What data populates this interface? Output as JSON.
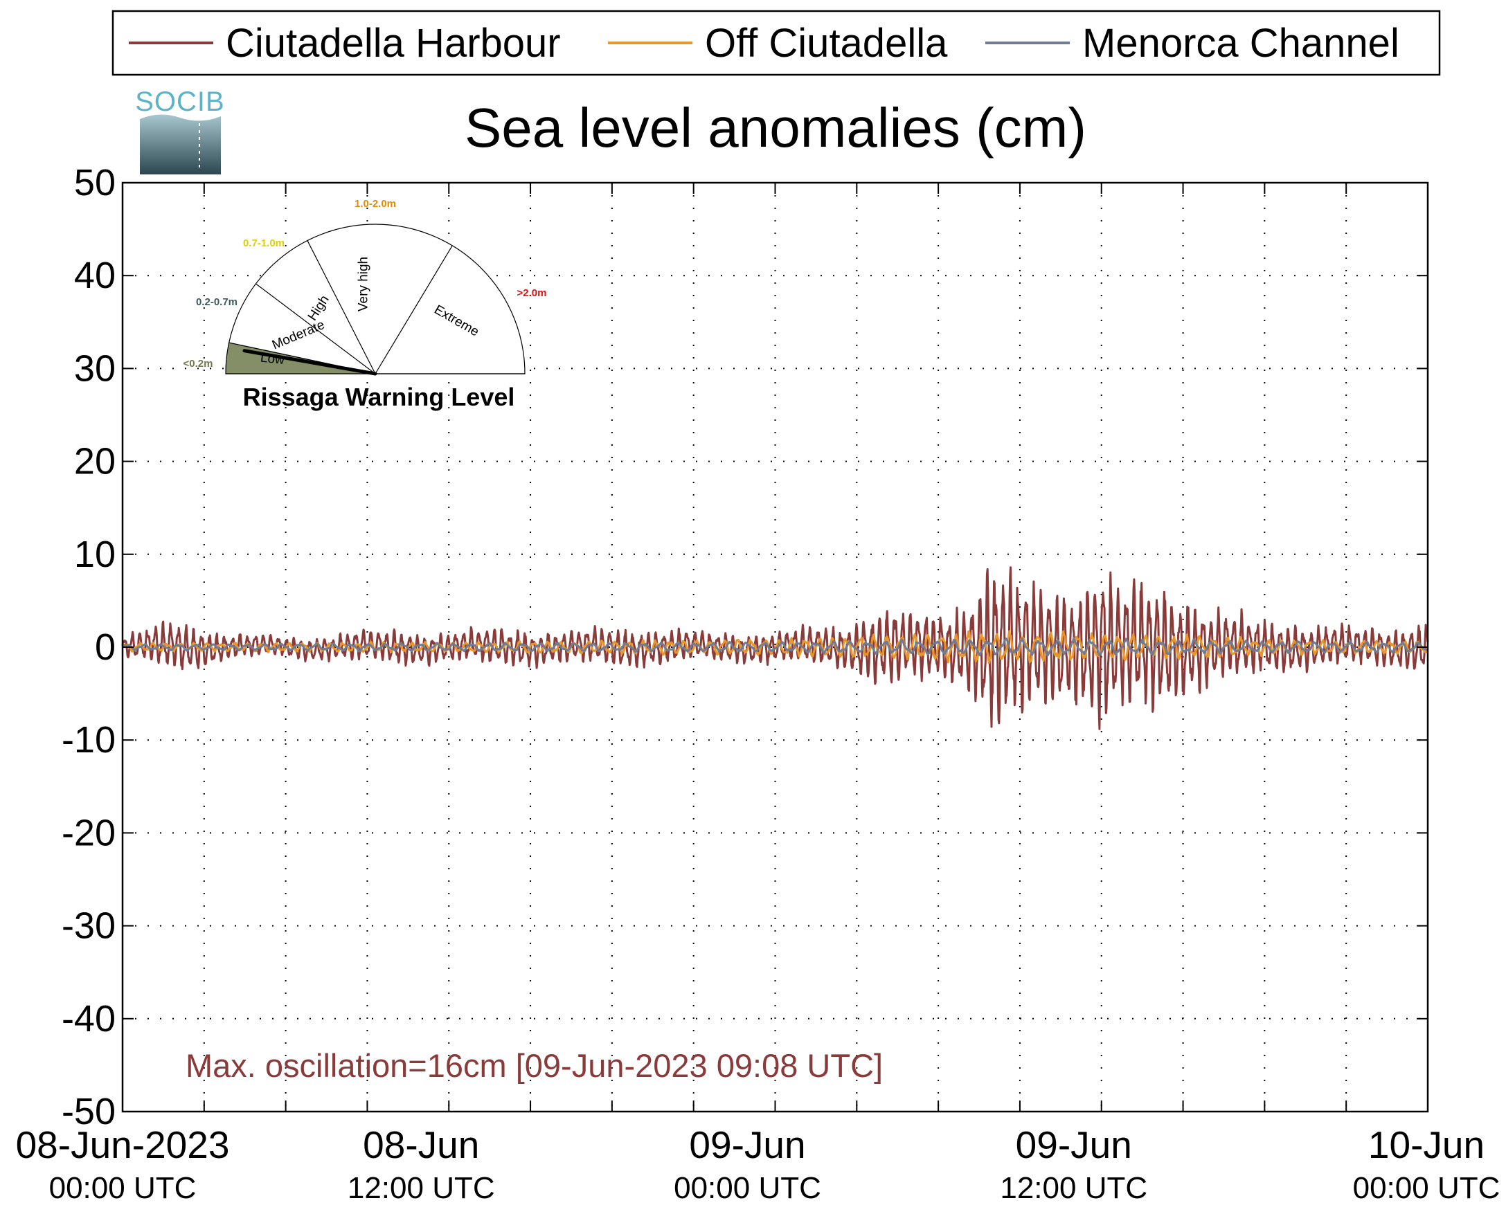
{
  "legend": {
    "items": [
      {
        "label": "Ciutadella Harbour",
        "color": "#8b3a3a"
      },
      {
        "label": "Off Ciutadella",
        "color": "#e8952a"
      },
      {
        "label": "Menorca Channel",
        "color": "#6f7c94"
      }
    ]
  },
  "logo": {
    "text": "SOCIB"
  },
  "gauge": {
    "title": "Rissaga Warning Level",
    "levels": [
      {
        "name": "Low",
        "range": "<0.2m",
        "color": "#6e7b4c"
      },
      {
        "name": "Moderate",
        "range": "0.2-0.7m",
        "color": "#3d5a5a"
      },
      {
        "name": "High",
        "range": "0.7-1.0m",
        "color": "#e0d000"
      },
      {
        "name": "Very high",
        "range": "1.0-2.0m",
        "color": "#e88a00"
      },
      {
        "name": "Extreme",
        "range": ">2.0m",
        "color": "#e01010"
      }
    ],
    "current_level": "Low"
  },
  "annotation": {
    "text": "Max. oscillation=16cm [09-Jun-2023 09:08 UTC]",
    "color": "#8b3a3a"
  },
  "chart_data": {
    "type": "line",
    "title": "Sea level anomalies (cm)",
    "xlabel": "",
    "ylabel": "",
    "ylim": [
      -50,
      50
    ],
    "yticks": [
      50,
      40,
      30,
      20,
      10,
      0,
      -10,
      -20,
      -30,
      -40,
      -50
    ],
    "xlim": [
      "2023-06-08T00:00",
      "2023-06-10T00:00"
    ],
    "x_ticks": [
      {
        "date": "08-Jun-2023",
        "time": "00:00 UTC",
        "x": "2023-06-08T00:00"
      },
      {
        "date": "08-Jun",
        "time": "12:00 UTC",
        "x": "2023-06-08T12:00"
      },
      {
        "date": "09-Jun",
        "time": "00:00 UTC",
        "x": "2023-06-09T00:00"
      },
      {
        "date": "09-Jun",
        "time": "12:00 UTC",
        "x": "2023-06-09T12:00"
      },
      {
        "date": "10-Jun",
        "time": "00:00 UTC",
        "x": "2023-06-10T00:00"
      }
    ],
    "grid": true,
    "legend_position": "top",
    "series": [
      {
        "name": "Ciutadella Harbour",
        "color": "#8b3a3a",
        "x": [
          "2023-06-08T00:00",
          "2023-06-08T02:00",
          "2023-06-08T04:00",
          "2023-06-08T06:00",
          "2023-06-08T08:00",
          "2023-06-08T10:00",
          "2023-06-08T12:00",
          "2023-06-08T14:00",
          "2023-06-08T16:00",
          "2023-06-08T18:00",
          "2023-06-08T20:00",
          "2023-06-08T22:00",
          "2023-06-09T00:00",
          "2023-06-09T02:00",
          "2023-06-09T03:00",
          "2023-06-09T04:00",
          "2023-06-09T05:00",
          "2023-06-09T06:00",
          "2023-06-09T07:00",
          "2023-06-09T08:00",
          "2023-06-09T09:00",
          "2023-06-09T10:00",
          "2023-06-09T11:00",
          "2023-06-09T12:00",
          "2023-06-09T13:00",
          "2023-06-09T14:00",
          "2023-06-09T15:00",
          "2023-06-09T16:00",
          "2023-06-09T18:00",
          "2023-06-09T20:00",
          "2023-06-09T22:00",
          "2023-06-10T00:00"
        ],
        "amplitude": [
          1.0,
          2.6,
          1.2,
          1.0,
          1.3,
          1.7,
          1.4,
          1.9,
          1.5,
          1.9,
          1.6,
          1.3,
          1.5,
          2.0,
          2.7,
          4.0,
          3.5,
          3.2,
          4.0,
          8.3,
          7.0,
          5.5,
          5.5,
          8.0,
          6.5,
          6.5,
          5.0,
          3.8,
          2.5,
          2.0,
          1.8,
          2.5
        ]
      },
      {
        "name": "Off Ciutadella",
        "color": "#e8952a",
        "x": [
          "2023-06-08T00:00",
          "2023-06-08T12:00",
          "2023-06-09T00:00",
          "2023-06-09T04:00",
          "2023-06-09T08:00",
          "2023-06-09T10:00",
          "2023-06-09T12:00",
          "2023-06-09T14:00",
          "2023-06-09T18:00",
          "2023-06-10T00:00"
        ],
        "amplitude": [
          0.4,
          0.5,
          0.8,
          1.2,
          1.6,
          1.5,
          1.4,
          1.3,
          0.8,
          0.6
        ]
      },
      {
        "name": "Menorca Channel",
        "color": "#6f7c94",
        "x": [
          "2023-06-08T00:00",
          "2023-06-08T12:00",
          "2023-06-09T00:00",
          "2023-06-09T08:00",
          "2023-06-09T12:00",
          "2023-06-09T18:00",
          "2023-06-10T00:00"
        ],
        "amplitude": [
          0.3,
          0.4,
          0.5,
          0.8,
          0.8,
          0.6,
          0.5
        ]
      }
    ]
  }
}
